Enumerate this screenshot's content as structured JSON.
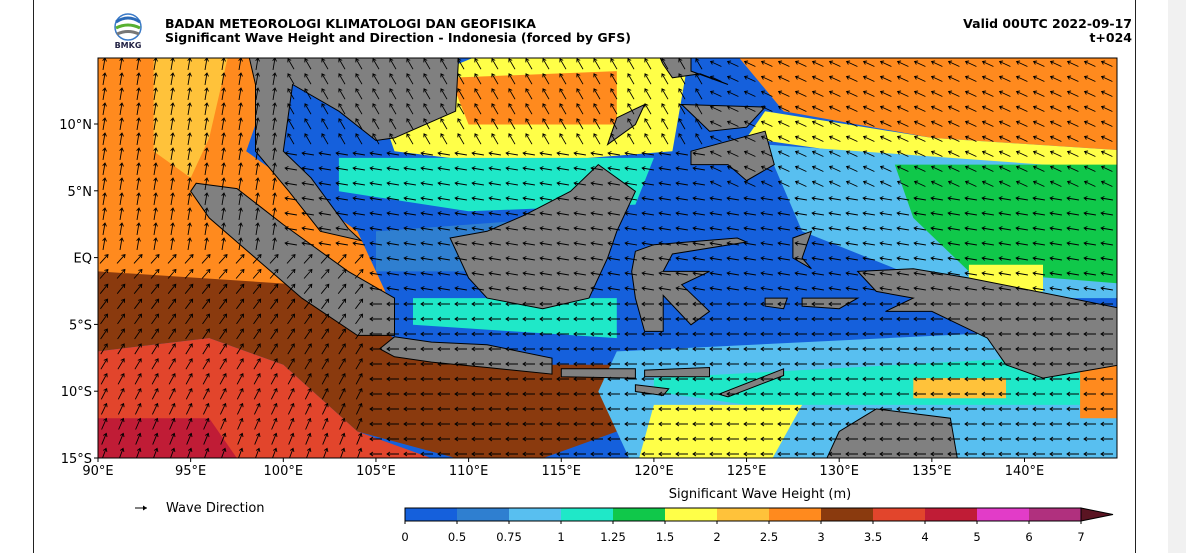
{
  "header": {
    "logo_text": "BMKG",
    "title": "BADAN METEOROLOGI KLIMATOLOGI DAN GEOFISIKA",
    "subtitle": "Significant Wave Height and Direction - Indonesia (forced by GFS)",
    "valid": "Valid 00UTC 2022-09-17",
    "lead": "t+024"
  },
  "map": {
    "lat_labels": [
      "10°N",
      "5°N",
      "EQ",
      "5°S",
      "10°S",
      "15°S"
    ],
    "lon_labels": [
      "90°E",
      "95°E",
      "100°E",
      "105°E",
      "110°E",
      "115°E",
      "120°E",
      "125°E",
      "130°E",
      "135°E",
      "140°E"
    ]
  },
  "legend": {
    "arrow_label": "Wave Direction"
  },
  "colorbar": {
    "title": "Significant Wave Height (m)",
    "ticks": [
      0,
      0.5,
      0.75,
      1,
      1.25,
      1.5,
      2,
      2.5,
      3,
      3.5,
      4,
      5,
      6,
      7
    ],
    "colors": [
      "#1560dc",
      "#2f7fd0",
      "#58bff0",
      "#1fe8c8",
      "#10c84a",
      "#ffff48",
      "#ffc23a",
      "#ff8a1e",
      "#8a3a0e",
      "#e2452c",
      "#c01c36",
      "#e23cc8",
      "#b0307e"
    ],
    "extend_color": "#5a1422"
  }
}
